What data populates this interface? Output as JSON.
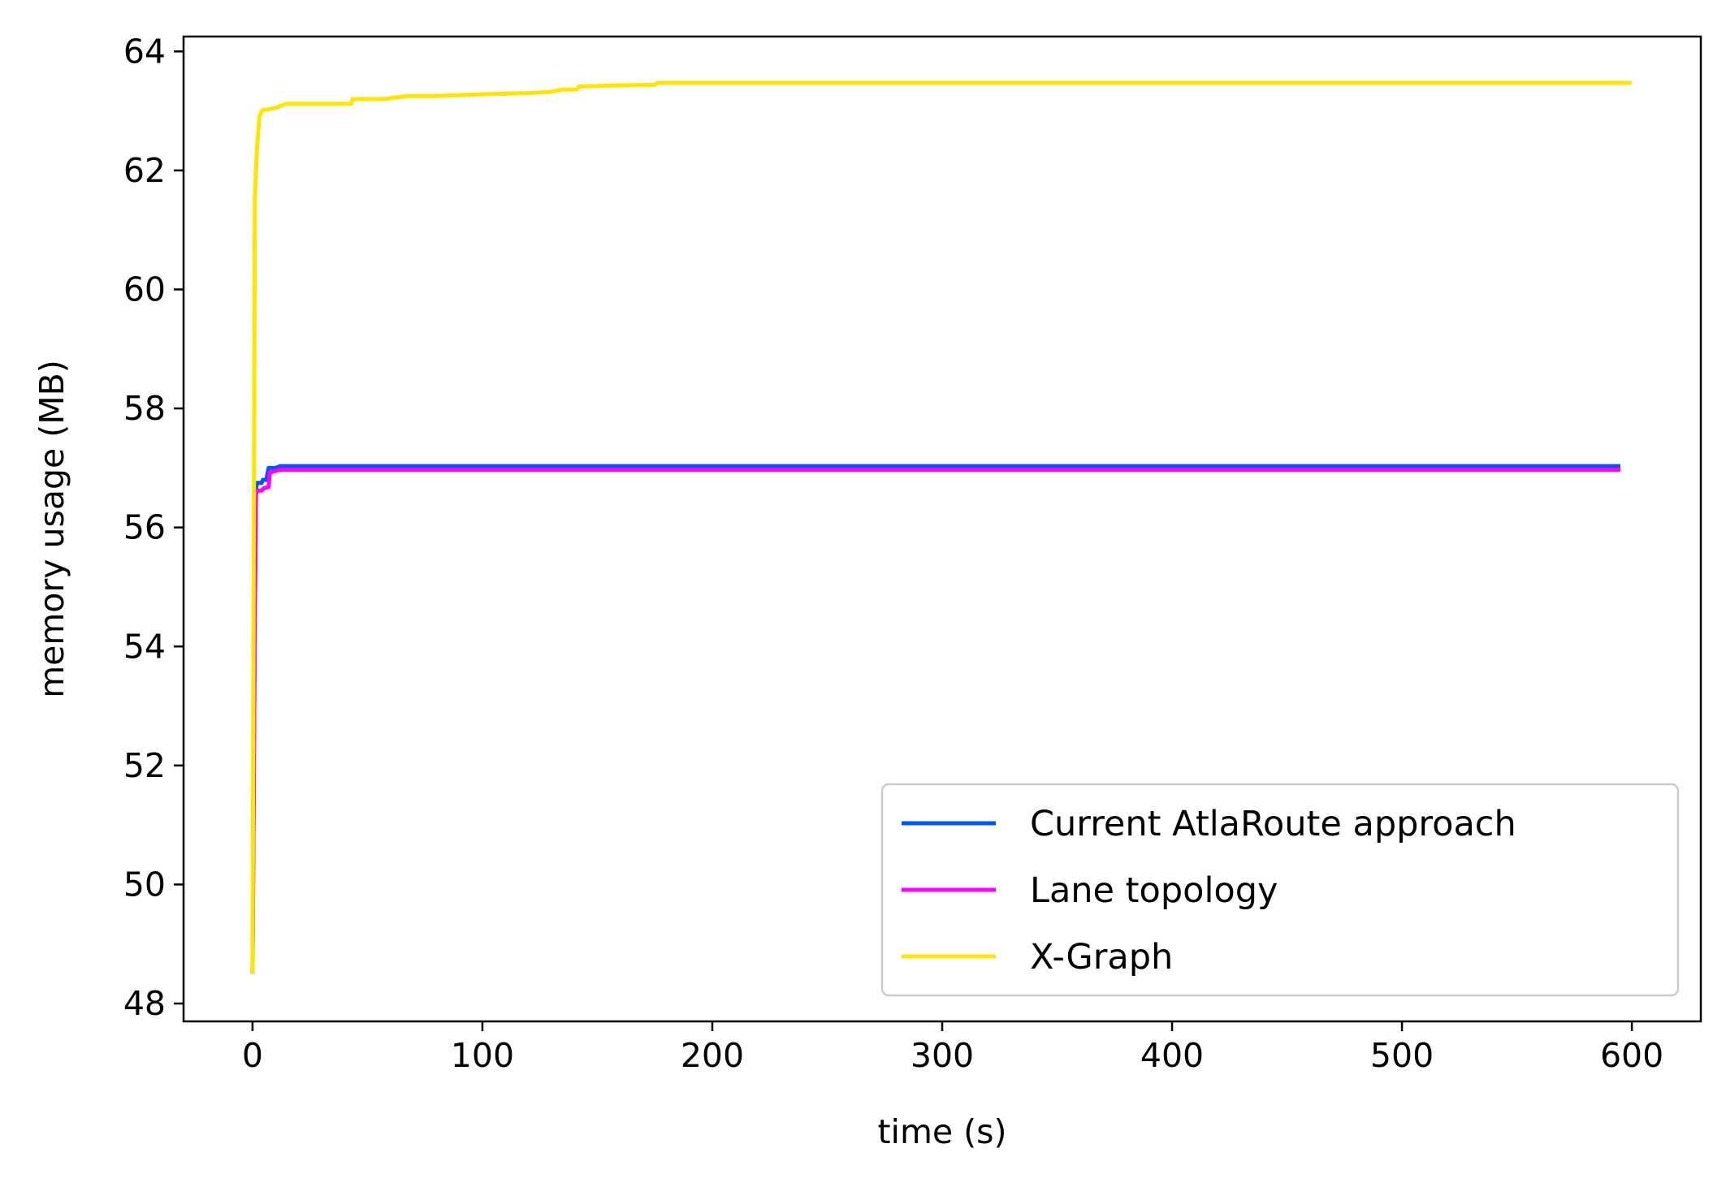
{
  "chart_data": {
    "type": "line",
    "title": "",
    "xlabel": "time (s)",
    "ylabel": "memory usage (MB)",
    "xlim": [
      -30,
      630
    ],
    "ylim": [
      47.7,
      64.25
    ],
    "xticks": [
      0,
      100,
      200,
      300,
      400,
      500,
      600
    ],
    "yticks": [
      48,
      50,
      52,
      54,
      56,
      58,
      60,
      62,
      64
    ],
    "xtick_labels": [
      "0",
      "100",
      "200",
      "300",
      "400",
      "500",
      "600"
    ],
    "ytick_labels": [
      "48",
      "50",
      "52",
      "54",
      "56",
      "58",
      "60",
      "62",
      "64"
    ],
    "grid": false,
    "legend_position": "lower right",
    "series": [
      {
        "name": "Current AtlaRoute approach",
        "color": "#0055ff",
        "x": [
          0,
          1,
          1.5,
          2,
          4,
          4.5,
          6,
          7,
          10,
          12,
          595
        ],
        "y": [
          48.5,
          54.5,
          56.65,
          56.75,
          56.75,
          56.8,
          56.8,
          57.0,
          57.0,
          57.03,
          57.03
        ]
      },
      {
        "name": "Lane topology",
        "color": "#ff00ff",
        "x": [
          0,
          1,
          1.5,
          2,
          4,
          5,
          7,
          7.5,
          10,
          12,
          595
        ],
        "y": [
          48.5,
          54.5,
          56.55,
          56.62,
          56.62,
          56.66,
          56.68,
          56.92,
          56.95,
          56.97,
          56.97
        ]
      },
      {
        "name": "X-Graph",
        "color": "#ffe500",
        "x": [
          0,
          0.5,
          1,
          1.5,
          2,
          3,
          4,
          5,
          6,
          10,
          12,
          15,
          43,
          43.5,
          57,
          63,
          68,
          70,
          80,
          100,
          120,
          130,
          135,
          141,
          142,
          160,
          175,
          176,
          600
        ],
        "y": [
          48.5,
          55.0,
          61.5,
          62.0,
          62.4,
          62.9,
          63.0,
          63.02,
          63.02,
          63.05,
          63.08,
          63.12,
          63.12,
          63.2,
          63.2,
          63.23,
          63.25,
          63.25,
          63.25,
          63.28,
          63.3,
          63.32,
          63.36,
          63.36,
          63.41,
          63.43,
          63.44,
          63.47,
          63.47
        ]
      }
    ]
  }
}
